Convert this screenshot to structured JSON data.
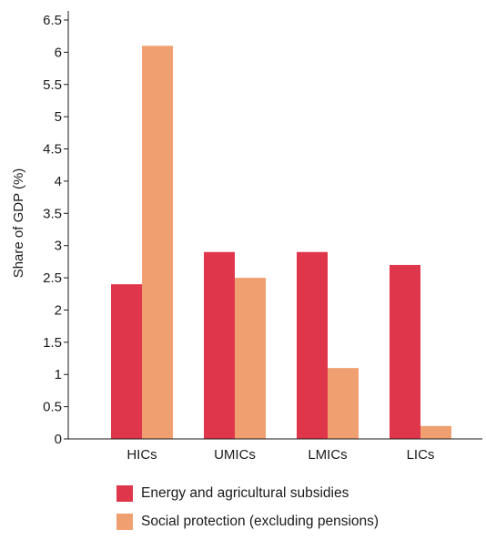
{
  "chart_data": {
    "type": "bar",
    "categories": [
      "HICs",
      "UMICs",
      "LMICs",
      "LICs"
    ],
    "series": [
      {
        "name": "Energy and agricultural subsidies",
        "values": [
          2.4,
          2.9,
          2.9,
          2.7
        ],
        "color": "#e0364b"
      },
      {
        "name": "Social protection (excluding pensions)",
        "values": [
          6.1,
          2.5,
          1.1,
          0.2
        ],
        "color": "#f0a070"
      }
    ],
    "ylabel": "Share of GDP (%)",
    "ylim": [
      0,
      6.5
    ],
    "yticks": [
      "0",
      "0.5",
      "1",
      "1.5",
      "2",
      "2.5",
      "3",
      "3.5",
      "4",
      "4.5",
      "5",
      "5.5",
      "6",
      "6.5"
    ],
    "grid": false,
    "legend_position": "bottom"
  }
}
